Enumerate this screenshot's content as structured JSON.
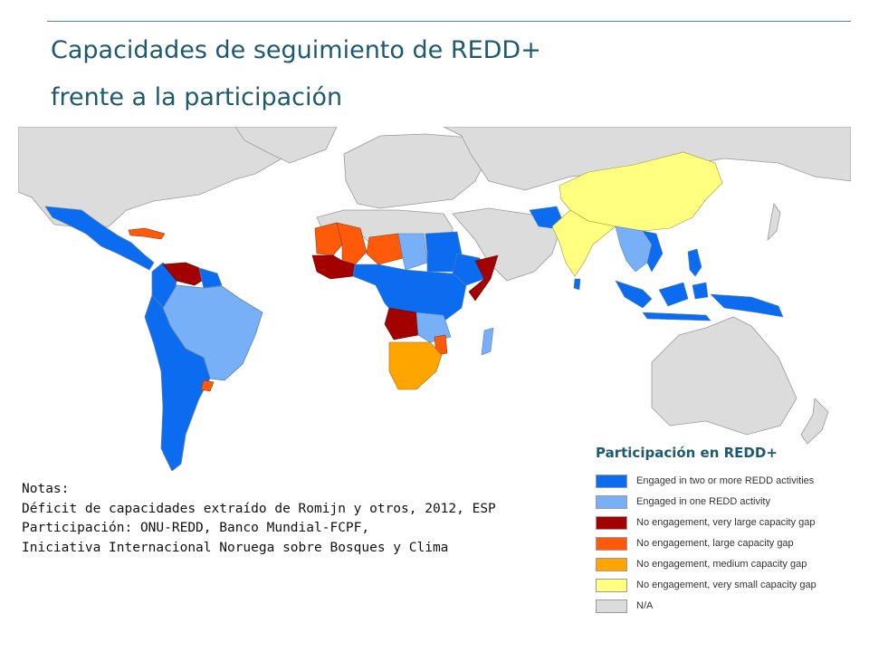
{
  "slide": {
    "title_line1": "Capacidades de seguimiento de REDD+",
    "title_line2": "frente a la participación"
  },
  "legend": {
    "title": "Participación en REDD+",
    "items": [
      {
        "label": "Engaged in two or more REDD activities",
        "color": "#0b6cf0"
      },
      {
        "label": "Engaged in one REDD activity",
        "color": "#78b0f8"
      },
      {
        "label": "No engagement, very large capacity gap",
        "color": "#a30000"
      },
      {
        "label": "No engagement, large capacity gap",
        "color": "#ff5a0a"
      },
      {
        "label": "No engagement, medium capacity gap",
        "color": "#ffa500"
      },
      {
        "label": "No engagement, very small capacity gap",
        "color": "#ffff80"
      },
      {
        "label": "N/A",
        "color": "#dcdcdc"
      }
    ]
  },
  "notes": {
    "heading": "Notas:",
    "line1": "Déficit de capacidades extraído de Romijn y otros, 2012, ESP",
    "line2": "Participación: ONU-REDD, Banco Mundial-FCPF,",
    "line3": "Iniciativa Internacional Noruega sobre Bosques y Clima"
  },
  "map": {
    "countries": [
      {
        "name": "Mexico",
        "category": "Engaged in two or more REDD activities"
      },
      {
        "name": "Cuba",
        "category": "No engagement, large capacity gap"
      },
      {
        "name": "Venezuela",
        "category": "No engagement, very large capacity gap"
      },
      {
        "name": "Brazil",
        "category": "Engaged in one REDD activity"
      },
      {
        "name": "Uruguay",
        "category": "No engagement, large capacity gap"
      },
      {
        "name": "Mauritania",
        "category": "No engagement, large capacity gap"
      },
      {
        "name": "Niger",
        "category": "No engagement, large capacity gap"
      },
      {
        "name": "Sudan",
        "category": "Engaged in two or more REDD activities"
      },
      {
        "name": "Somalia",
        "category": "No engagement, very large capacity gap"
      },
      {
        "name": "Angola",
        "category": "No engagement, very large capacity gap"
      },
      {
        "name": "Zambia",
        "category": "Engaged in one REDD activity"
      },
      {
        "name": "Madagascar",
        "category": "Engaged in one REDD activity"
      },
      {
        "name": "South Africa",
        "category": "No engagement, medium capacity gap"
      },
      {
        "name": "India",
        "category": "No engagement, very small capacity gap"
      },
      {
        "name": "China",
        "category": "No engagement, very small capacity gap"
      },
      {
        "name": "Indonesia",
        "category": "Engaged in two or more REDD activities"
      },
      {
        "name": "Australia",
        "category": "N/A"
      }
    ]
  }
}
